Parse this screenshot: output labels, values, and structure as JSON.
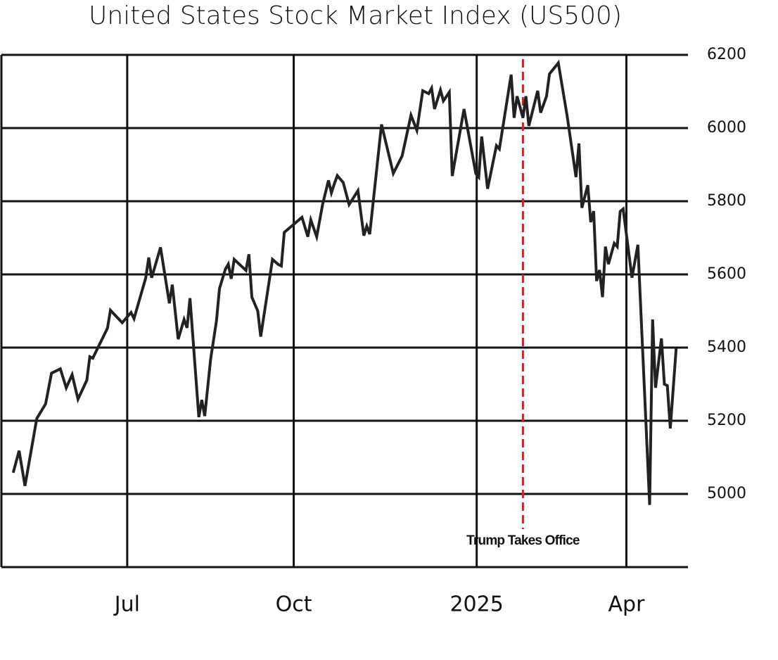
{
  "chart_data": {
    "type": "line",
    "title": "United States Stock Market Index (US500)",
    "x": [
      0,
      2,
      4,
      8,
      11,
      13,
      16,
      18,
      20,
      22,
      25,
      26,
      27,
      32,
      33,
      37,
      40,
      41,
      45,
      46,
      47,
      50,
      53,
      54,
      56,
      58,
      59,
      60,
      63,
      64,
      65,
      67,
      69,
      70,
      72,
      73,
      74,
      75,
      79,
      80,
      81,
      83,
      84,
      88,
      90,
      91,
      92,
      98,
      100,
      101,
      103,
      105,
      107,
      108,
      109,
      110,
      112,
      114,
      117,
      119,
      120,
      121,
      125,
      129,
      132,
      135,
      137,
      139,
      141,
      142,
      143,
      145,
      146,
      148,
      149,
      153,
      157,
      158,
      159,
      161,
      164,
      165,
      169,
      170,
      171,
      173,
      174,
      175,
      178,
      179,
      181,
      182,
      185,
      188,
      191,
      192,
      193,
      195,
      196,
      197,
      198,
      199,
      200,
      201,
      202,
      204,
      205,
      206,
      207,
      210,
      212,
      216,
      217,
      218,
      220,
      221,
      222,
      223,
      225
    ],
    "series": [
      {
        "name": "US500",
        "color": "#222222",
        "values": [
          5058,
          5118,
          5022,
          5206,
          5246,
          5330,
          5342,
          5290,
          5326,
          5259,
          5311,
          5375,
          5371,
          5453,
          5502,
          5468,
          5496,
          5479,
          5591,
          5646,
          5591,
          5674,
          5521,
          5572,
          5423,
          5477,
          5454,
          5535,
          5210,
          5257,
          5213,
          5368,
          5474,
          5561,
          5614,
          5628,
          5588,
          5641,
          5611,
          5655,
          5538,
          5500,
          5430,
          5641,
          5627,
          5623,
          5715,
          5756,
          5703,
          5749,
          5703,
          5791,
          5857,
          5823,
          5848,
          5870,
          5851,
          5791,
          5829,
          5706,
          5732,
          5710,
          6010,
          5876,
          5924,
          6035,
          5994,
          6102,
          6094,
          6109,
          6052,
          6104,
          6074,
          6098,
          5869,
          6052,
          5876,
          5866,
          5977,
          5834,
          5952,
          5943,
          6146,
          6028,
          6087,
          6028,
          6087,
          6006,
          6102,
          6042,
          6087,
          6148,
          6178,
          6033,
          5866,
          5958,
          5782,
          5844,
          5743,
          5773,
          5582,
          5612,
          5538,
          5676,
          5628,
          5685,
          5676,
          5772,
          5779,
          5591,
          5681,
          4970,
          5477,
          5290,
          5425,
          5300,
          5296,
          5179,
          5398
        ]
      }
    ],
    "xlim": [
      -4,
      229
    ],
    "xticks": [
      {
        "value": 38.7,
        "label": "Jul"
      },
      {
        "value": 95.2,
        "label": "Oct"
      },
      {
        "value": 157.3,
        "label": "2025"
      },
      {
        "value": 208.1,
        "label": "Apr"
      }
    ],
    "ylim": [
      4800,
      6200
    ],
    "yticks": [
      5000,
      5200,
      5400,
      5600,
      5800,
      6000,
      6200
    ],
    "grid": true,
    "annotations": [
      {
        "text": "Trump Takes Office",
        "x": 173,
        "color": "#e02020"
      }
    ]
  }
}
